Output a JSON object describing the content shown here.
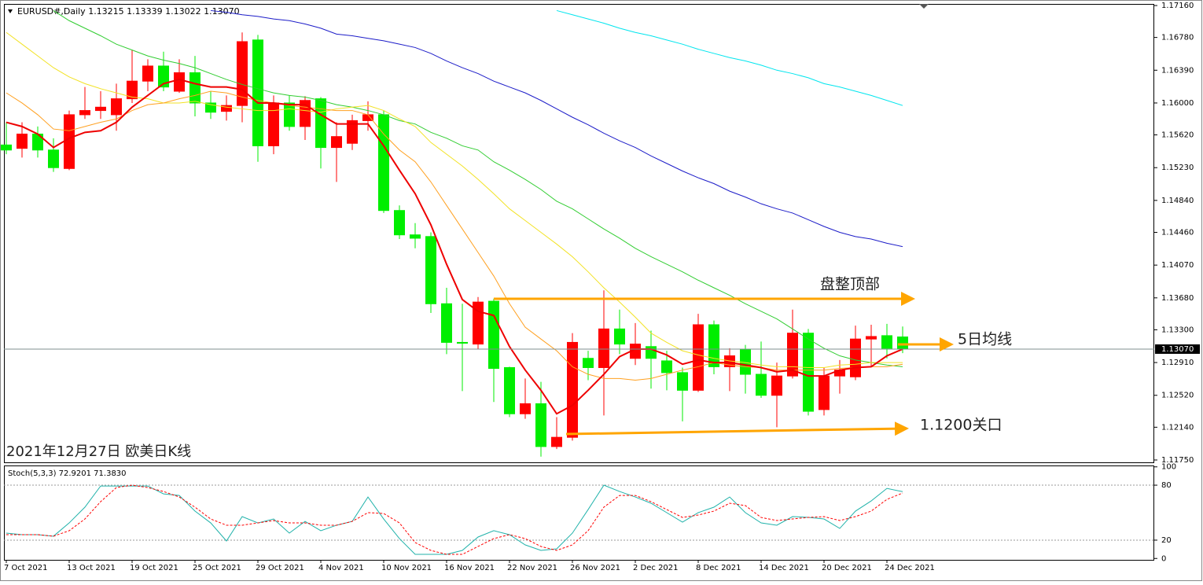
{
  "chart_data": [
    {
      "type": "candlestick",
      "title": "EURUSD#,Daily  1.13215 1.13339 1.13022 1.13070",
      "caption": "2021年12月27日 欧美日K线",
      "categories": [
        "7 Oct 2021",
        null,
        null,
        null,
        "13 Oct 2021",
        null,
        null,
        null,
        "19 Oct 2021",
        null,
        null,
        null,
        "25 Oct 2021",
        null,
        null,
        null,
        "29 Oct 2021",
        null,
        null,
        null,
        "4 Nov 2021",
        null,
        null,
        null,
        "10 Nov 2021",
        null,
        null,
        null,
        "16 Nov 2021",
        null,
        null,
        null,
        "22 Nov 2021",
        null,
        null,
        null,
        "26 Nov 2021",
        null,
        null,
        null,
        "2 Dec 2021",
        null,
        null,
        null,
        "8 Dec 2021",
        null,
        null,
        null,
        "14 Dec 2021",
        null,
        null,
        null,
        "20 Dec 2021",
        null,
        null,
        null,
        "24 Dec 2021",
        null
      ],
      "open": [
        1.155,
        1.1546,
        1.1563,
        1.1544,
        1.1522,
        1.1586,
        1.1591,
        1.1586,
        1.1605,
        1.1626,
        1.1644,
        1.1614,
        1.1636,
        1.16,
        1.159,
        1.1597,
        1.1675,
        1.1549,
        1.16,
        1.1572,
        1.1605,
        1.1547,
        1.1552,
        1.1579,
        1.1586,
        1.1472,
        1.1443,
        1.1441,
        1.1361,
        1.1315,
        1.1313,
        1.1364,
        1.1285,
        1.123,
        1.1242,
        1.1191,
        1.1202,
        1.1296,
        1.1285,
        1.1331,
        1.1296,
        1.131,
        1.1293,
        1.1279,
        1.1258,
        1.1336,
        1.1286,
        1.1307,
        1.1277,
        1.1252,
        1.1275,
        1.1326,
        1.1235,
        1.1275,
        1.1274,
        1.1319,
        1.1323,
        1.13215
      ],
      "high": [
        1.1577,
        1.1577,
        1.1572,
        1.1558,
        1.1591,
        1.1619,
        1.1614,
        1.1623,
        1.1663,
        1.1652,
        1.1661,
        1.1652,
        1.1656,
        1.1614,
        1.1609,
        1.1684,
        1.1681,
        1.1609,
        1.1609,
        1.1608,
        1.1607,
        1.1577,
        1.1586,
        1.1602,
        1.1591,
        1.1478,
        1.1457,
        1.1446,
        1.138,
        1.1361,
        1.1369,
        1.1367,
        1.1286,
        1.1272,
        1.1268,
        1.1226,
        1.1326,
        1.1305,
        1.1377,
        1.1354,
        1.1338,
        1.1329,
        1.1305,
        1.1285,
        1.1349,
        1.1341,
        1.1308,
        1.1312,
        1.1316,
        1.1291,
        1.1354,
        1.1331,
        1.1285,
        1.1294,
        1.1335,
        1.1336,
        1.1337,
        1.13339
      ],
      "low": [
        1.1539,
        1.1535,
        1.1535,
        1.1518,
        1.152,
        1.1581,
        1.1581,
        1.1567,
        1.16,
        1.1614,
        1.1614,
        1.1612,
        1.1584,
        1.1581,
        1.1579,
        1.1577,
        1.153,
        1.1539,
        1.1567,
        1.1556,
        1.1522,
        1.1506,
        1.1544,
        1.1567,
        1.1469,
        1.1438,
        1.1427,
        1.135,
        1.1301,
        1.1257,
        1.1307,
        1.1244,
        1.1226,
        1.1224,
        1.1179,
        1.1188,
        1.1198,
        1.127,
        1.1228,
        1.1301,
        1.1288,
        1.126,
        1.1258,
        1.1221,
        1.1256,
        1.1277,
        1.1257,
        1.1254,
        1.1249,
        1.1214,
        1.1272,
        1.1228,
        1.1228,
        1.1254,
        1.127,
        1.1286,
        1.1296,
        1.13022
      ],
      "close": [
        1.1544,
        1.1563,
        1.1544,
        1.1523,
        1.1586,
        1.1591,
        1.1595,
        1.1605,
        1.1626,
        1.1644,
        1.1619,
        1.1636,
        1.16,
        1.1589,
        1.1597,
        1.1673,
        1.1549,
        1.16,
        1.1572,
        1.1603,
        1.1547,
        1.156,
        1.1579,
        1.1586,
        1.1472,
        1.1443,
        1.1439,
        1.1361,
        1.1315,
        1.1314,
        1.1363,
        1.1284,
        1.123,
        1.1242,
        1.1191,
        1.1202,
        1.1315,
        1.1285,
        1.1331,
        1.1313,
        1.1313,
        1.1296,
        1.1279,
        1.1258,
        1.1336,
        1.1286,
        1.1299,
        1.1277,
        1.1252,
        1.1275,
        1.1326,
        1.1233,
        1.1275,
        1.1282,
        1.1319,
        1.1322,
        1.1308,
        1.1307
      ],
      "up_color": "#ff0000",
      "down_color": "#00ee00",
      "moving_averages": [
        {
          "color": "#00e5ee",
          "width": 1,
          "values": [
            null,
            null,
            null,
            null,
            null,
            null,
            null,
            null,
            null,
            null,
            null,
            null,
            null,
            null,
            null,
            null,
            null,
            null,
            null,
            null,
            null,
            null,
            null,
            null,
            null,
            null,
            null,
            null,
            null,
            null,
            null,
            null,
            null,
            null,
            null,
            1.171,
            1.1705,
            1.17,
            1.1695,
            1.1689,
            1.1684,
            1.168,
            1.1675,
            1.167,
            1.1664,
            1.1659,
            1.1654,
            1.165,
            1.1645,
            1.1639,
            1.1635,
            1.163,
            1.1623,
            1.1619,
            1.1614,
            1.1609,
            1.1603,
            1.1597
          ]
        },
        {
          "color": "#1c1cc8",
          "width": 1,
          "values": [
            null,
            null,
            null,
            null,
            null,
            null,
            null,
            null,
            null,
            null,
            null,
            null,
            null,
            1.171,
            1.1708,
            1.1705,
            1.1703,
            1.17,
            1.1698,
            1.1694,
            1.1689,
            1.1682,
            1.168,
            1.1677,
            1.1674,
            1.167,
            1.1666,
            1.1659,
            1.165,
            1.1642,
            1.1635,
            1.1626,
            1.1619,
            1.1612,
            1.1603,
            1.1593,
            1.1583,
            1.1574,
            1.1564,
            1.1555,
            1.1547,
            1.1537,
            1.1528,
            1.1519,
            1.1511,
            1.1504,
            1.1495,
            1.1488,
            1.148,
            1.1474,
            1.1469,
            1.1461,
            1.1453,
            1.1446,
            1.1441,
            1.1438,
            1.1433,
            1.1429
          ]
        },
        {
          "color": "#32cd32",
          "width": 1,
          "values": [
            null,
            null,
            null,
            1.171,
            1.1698,
            1.1689,
            1.168,
            1.167,
            1.1663,
            1.1656,
            1.1651,
            1.1647,
            1.1642,
            1.1635,
            1.1628,
            1.1622,
            1.1617,
            1.1612,
            1.1609,
            1.1607,
            1.1603,
            1.1598,
            1.1595,
            1.1591,
            1.1586,
            1.1579,
            1.1575,
            1.1565,
            1.1558,
            1.1549,
            1.1544,
            1.153,
            1.152,
            1.1509,
            1.1497,
            1.1483,
            1.1474,
            1.1462,
            1.145,
            1.1439,
            1.1427,
            1.1417,
            1.1408,
            1.1399,
            1.1389,
            1.138,
            1.1371,
            1.1361,
            1.1352,
            1.1343,
            1.1331,
            1.1319,
            1.1308,
            1.1299,
            1.1294,
            1.1291,
            1.1288,
            1.1286
          ]
        },
        {
          "color": "#f2e224",
          "width": 1,
          "values": [
            1.1684,
            1.167,
            1.1656,
            1.1642,
            1.1631,
            1.1623,
            1.1617,
            1.1612,
            1.1607,
            1.1605,
            1.16,
            1.16,
            1.1602,
            1.1598,
            1.1595,
            1.1593,
            1.1591,
            1.1591,
            1.1593,
            1.1591,
            1.1589,
            1.1593,
            1.1595,
            1.1597,
            1.1591,
            1.1581,
            1.1572,
            1.1553,
            1.1539,
            1.1525,
            1.1509,
            1.1492,
            1.1474,
            1.146,
            1.1446,
            1.1432,
            1.1417,
            1.1399,
            1.138,
            1.1363,
            1.1345,
            1.1326,
            1.1315,
            1.1305,
            1.13,
            1.1296,
            1.1293,
            1.1291,
            1.1288,
            1.1286,
            1.1286,
            1.1285,
            1.1285,
            1.1288,
            1.1289,
            1.1291,
            1.1291,
            1.1291
          ]
        },
        {
          "color": "#ffa020",
          "width": 1,
          "values": [
            1.1612,
            1.16,
            1.1586,
            1.1569,
            1.1567,
            1.1572,
            1.1577,
            1.1581,
            1.1591,
            1.1598,
            1.16,
            1.1605,
            1.1609,
            1.1614,
            1.1612,
            1.1607,
            1.1603,
            1.16,
            1.1597,
            1.1595,
            1.1593,
            1.1591,
            1.1591,
            1.1586,
            1.1563,
            1.1544,
            1.153,
            1.1506,
            1.1478,
            1.145,
            1.1422,
            1.1394,
            1.1361,
            1.1333,
            1.1319,
            1.1305,
            1.1286,
            1.1277,
            1.1272,
            1.1272,
            1.127,
            1.1272,
            1.1277,
            1.1282,
            1.1286,
            1.1291,
            1.1288,
            1.1286,
            1.1285,
            1.1282,
            1.1282,
            1.1282,
            1.1282,
            1.1284,
            1.1285,
            1.1286,
            1.1286,
            1.1289
          ]
        },
        {
          "color": "#ee0000",
          "width": 2,
          "values": [
            1.1577,
            1.1572,
            1.1563,
            1.1547,
            1.1558,
            1.1565,
            1.1567,
            1.1577,
            1.1595,
            1.1609,
            1.1623,
            1.1628,
            1.1623,
            1.1619,
            1.1619,
            1.1616,
            1.16,
            1.16,
            1.1598,
            1.1598,
            1.1586,
            1.1575,
            1.1575,
            1.1575,
            1.1549,
            1.152,
            1.1492,
            1.1455,
            1.1408,
            1.1366,
            1.1352,
            1.1347,
            1.131,
            1.1282,
            1.1258,
            1.123,
            1.124,
            1.1258,
            1.1277,
            1.1298,
            1.1307,
            1.1307,
            1.13,
            1.1289,
            1.1294,
            1.1291,
            1.1291,
            1.1288,
            1.1285,
            1.128,
            1.1282,
            1.1275,
            1.1275,
            1.1282,
            1.1285,
            1.1286,
            1.1299,
            1.1307
          ]
        }
      ],
      "current_price": {
        "value": 1.1307,
        "label": "1.13070"
      },
      "annotations": [
        {
          "text": "盘整顶部"
        },
        {
          "text": "5日均线"
        },
        {
          "text": "1.1200关口"
        }
      ],
      "ylim": [
        1.11722,
        1.17179
      ],
      "yticks": [
        {
          "value": 1.1716,
          "label": "1.17160"
        },
        {
          "value": 1.1678,
          "label": "1.16780"
        },
        {
          "value": 1.1639,
          "label": "1.16390"
        },
        {
          "value": 1.16,
          "label": "1.16000"
        },
        {
          "value": 1.1562,
          "label": "1.15620"
        },
        {
          "value": 1.1523,
          "label": "1.15230"
        },
        {
          "value": 1.1484,
          "label": "1.14840"
        },
        {
          "value": 1.1446,
          "label": "1.14460"
        },
        {
          "value": 1.1407,
          "label": "1.14070"
        },
        {
          "value": 1.1368,
          "label": "1.13680"
        },
        {
          "value": 1.133,
          "label": "1.13300"
        },
        {
          "value": 1.1291,
          "label": "1.12910"
        },
        {
          "value": 1.1252,
          "label": "1.12520"
        },
        {
          "value": 1.1214,
          "label": "1.12140"
        },
        {
          "value": 1.1175,
          "label": "1.11750"
        }
      ]
    },
    {
      "type": "line",
      "title": "Stoch(5,3,3) 72.9201 71.3830",
      "series": [
        {
          "color": "#20b2aa",
          "dashed": false,
          "values": [
            27.7,
            26.0,
            26.0,
            24.3,
            38.8,
            56.0,
            79.1,
            79.1,
            79.1,
            79.1,
            70.5,
            68.8,
            51.7,
            38.8,
            19.1,
            45.7,
            38.8,
            43.1,
            27.7,
            40.5,
            30.3,
            36.3,
            40.5,
            67.1,
            43.1,
            21.7,
            4.5,
            4.5,
            4.5,
            8.8,
            23.4,
            30.3,
            26.0,
            14.8,
            8.8,
            10.5,
            27.7,
            53.4,
            80.0,
            73.1,
            67.1,
            60.3,
            50.0,
            39.7,
            50.0,
            56.0,
            67.1,
            50.0,
            38.8,
            36.3,
            45.7,
            44.9,
            43.1,
            32.8,
            51.7,
            62.8,
            76.5,
            72.92
          ]
        },
        {
          "color": "#ff0000",
          "dashed": true,
          "values": [
            26.0,
            26.0,
            26.0,
            24.3,
            30.3,
            43.1,
            62.0,
            77.4,
            80.0,
            77.4,
            73.1,
            67.1,
            56.0,
            43.1,
            36.3,
            36.3,
            38.8,
            41.4,
            38.8,
            38.8,
            36.3,
            36.3,
            40.5,
            50.0,
            49.1,
            38.8,
            17.4,
            8.8,
            4.5,
            4.5,
            13.1,
            21.7,
            26.0,
            21.7,
            13.1,
            8.8,
            14.8,
            30.3,
            56.0,
            68.8,
            68.8,
            62.0,
            53.4,
            44.8,
            47.4,
            51.7,
            60.3,
            57.7,
            44.8,
            41.4,
            43.1,
            44.8,
            45.7,
            41.4,
            45.7,
            51.7,
            64.5,
            71.38
          ]
        }
      ],
      "levels": [
        20,
        80
      ],
      "ylim": [
        -1.5,
        101.5
      ],
      "yticks": [
        0,
        20,
        80,
        100
      ]
    }
  ]
}
